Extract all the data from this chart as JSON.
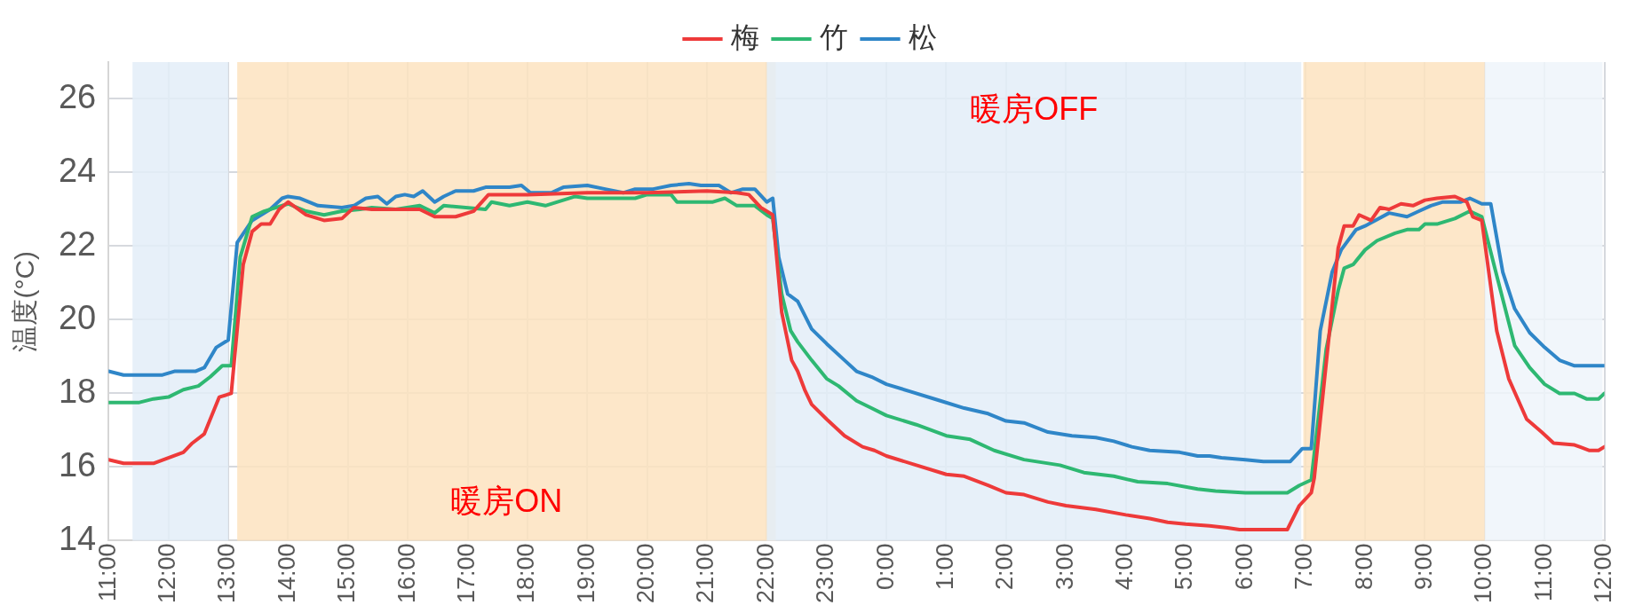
{
  "chart_data": {
    "type": "line",
    "ylabel": "温度(°C)",
    "xlim": [
      "2000-01-01T11:00",
      "2000-01-02T12:00"
    ],
    "ylim": [
      14,
      27
    ],
    "yticks": [
      14,
      16,
      18,
      20,
      22,
      24,
      26
    ],
    "xticks": [
      {
        "value": "2000-01-01T11:00",
        "label": "11:00"
      },
      {
        "value": "2000-01-01T12:00",
        "label": "12:00"
      },
      {
        "value": "2000-01-01T13:00",
        "label": "13:00"
      },
      {
        "value": "2000-01-01T14:00",
        "label": "14:00"
      },
      {
        "value": "2000-01-01T15:00",
        "label": "15:00"
      },
      {
        "value": "2000-01-01T16:00",
        "label": "16:00"
      },
      {
        "value": "2000-01-01T17:00",
        "label": "17:00"
      },
      {
        "value": "2000-01-01T18:00",
        "label": "18:00"
      },
      {
        "value": "2000-01-01T19:00",
        "label": "19:00"
      },
      {
        "value": "2000-01-01T20:00",
        "label": "20:00"
      },
      {
        "value": "2000-01-01T21:00",
        "label": "21:00"
      },
      {
        "value": "2000-01-01T22:00",
        "label": "22:00"
      },
      {
        "value": "2000-01-01T23:00",
        "label": "23:00"
      },
      {
        "value": "2000-01-02T00:00",
        "label": "0:00"
      },
      {
        "value": "2000-01-02T01:00",
        "label": "1:00"
      },
      {
        "value": "2000-01-02T02:00",
        "label": "2:00"
      },
      {
        "value": "2000-01-02T03:00",
        "label": "3:00"
      },
      {
        "value": "2000-01-02T04:00",
        "label": "4:00"
      },
      {
        "value": "2000-01-02T05:00",
        "label": "5:00"
      },
      {
        "value": "2000-01-02T06:00",
        "label": "6:00"
      },
      {
        "value": "2000-01-02T07:00",
        "label": "7:00"
      },
      {
        "value": "2000-01-02T08:00",
        "label": "8:00"
      },
      {
        "value": "2000-01-02T09:00",
        "label": "9:00"
      },
      {
        "value": "2000-01-02T10:00",
        "label": "10:00"
      },
      {
        "value": "2000-01-02T11:00",
        "label": "11:00"
      },
      {
        "value": "2000-01-02T12:00",
        "label": "12:00"
      }
    ],
    "grid": true,
    "legend": "top",
    "line_style": "solid",
    "marker": "none",
    "bands": [
      {
        "axis": "x",
        "from": "2000-01-01T11:24",
        "to": "2000-01-01T13:00",
        "color": "#e3edf8"
      },
      {
        "axis": "x",
        "from": "2000-01-01T13:09",
        "to": "2000-01-01T22:09",
        "color": "#fde3bf",
        "label": "暖房ON"
      },
      {
        "axis": "x",
        "from": "2000-01-01T22:00",
        "to": "2000-01-02T06:56",
        "color": "#e3edf8",
        "label": "暖房OFF"
      },
      {
        "axis": "x",
        "from": "2000-01-02T06:58",
        "to": "2000-01-02T10:00",
        "color": "#fde3bf"
      },
      {
        "axis": "x",
        "from": "2000-01-02T10:00",
        "to": "2000-01-02T11:58",
        "color": "#eef4fa"
      }
    ],
    "series": [
      {
        "name": "梅",
        "color": "#ee3a3a",
        "x": [
          "2000-01-01T11:00",
          "2000-01-01T11:15",
          "2000-01-01T11:45",
          "2000-01-01T12:15",
          "2000-01-01T12:24",
          "2000-01-01T12:36",
          "2000-01-01T12:51",
          "2000-01-01T13:03",
          "2000-01-01T13:15",
          "2000-01-01T13:24",
          "2000-01-01T13:33",
          "2000-01-01T13:42",
          "2000-01-01T13:51",
          "2000-01-01T14:00",
          "2000-01-01T14:18",
          "2000-01-01T14:36",
          "2000-01-01T14:54",
          "2000-01-01T15:06",
          "2000-01-01T15:24",
          "2000-01-01T15:48",
          "2000-01-01T16:12",
          "2000-01-01T16:27",
          "2000-01-01T16:48",
          "2000-01-01T17:06",
          "2000-01-01T17:21",
          "2000-01-01T18:00",
          "2000-01-01T19:00",
          "2000-01-01T20:00",
          "2000-01-01T21:00",
          "2000-01-01T21:30",
          "2000-01-01T21:42",
          "2000-01-01T21:54",
          "2000-01-01T22:06",
          "2000-01-01T22:15",
          "2000-01-01T22:25",
          "2000-01-01T22:31",
          "2000-01-01T22:38",
          "2000-01-01T22:45",
          "2000-01-01T23:00",
          "2000-01-01T23:18",
          "2000-01-01T23:36",
          "2000-01-01T23:48",
          "2000-01-02T00:00",
          "2000-01-02T00:30",
          "2000-01-02T01:00",
          "2000-01-02T01:18",
          "2000-01-02T01:42",
          "2000-01-02T02:00",
          "2000-01-02T02:18",
          "2000-01-02T02:42",
          "2000-01-02T03:00",
          "2000-01-02T03:30",
          "2000-01-02T04:00",
          "2000-01-02T04:24",
          "2000-01-02T04:42",
          "2000-01-02T05:00",
          "2000-01-02T05:24",
          "2000-01-02T05:42",
          "2000-01-02T05:54",
          "2000-01-02T06:42",
          "2000-01-02T06:54",
          "2000-01-02T07:06",
          "2000-01-02T07:09",
          "2000-01-02T07:33",
          "2000-01-02T07:39",
          "2000-01-02T07:48",
          "2000-01-02T07:54",
          "2000-01-02T08:06",
          "2000-01-02T08:15",
          "2000-01-02T08:24",
          "2000-01-02T08:36",
          "2000-01-02T08:48",
          "2000-01-02T09:00",
          "2000-01-02T09:12",
          "2000-01-02T09:30",
          "2000-01-02T09:42",
          "2000-01-02T09:48",
          "2000-01-02T09:57",
          "2000-01-02T10:12",
          "2000-01-02T10:24",
          "2000-01-02T10:42",
          "2000-01-02T10:57",
          "2000-01-02T11:09",
          "2000-01-02T11:30",
          "2000-01-02T11:45",
          "2000-01-02T11:54",
          "2000-01-02T12:00"
        ],
        "values": [
          16.2,
          16.1,
          16.1,
          16.4,
          16.65,
          16.9,
          17.9,
          18,
          21.5,
          22.4,
          22.6,
          22.6,
          23,
          23.2,
          22.85,
          22.7,
          22.75,
          23.05,
          23,
          23,
          23,
          22.8,
          22.8,
          22.95,
          23.4,
          23.4,
          23.45,
          23.45,
          23.5,
          23.45,
          23.4,
          23.05,
          22.85,
          20.2,
          18.9,
          18.6,
          18.1,
          17.7,
          17.3,
          16.85,
          16.55,
          16.45,
          16.3,
          16.05,
          15.8,
          15.75,
          15.5,
          15.3,
          15.25,
          15.05,
          14.95,
          14.85,
          14.7,
          14.6,
          14.5,
          14.45,
          14.4,
          14.35,
          14.3,
          14.3,
          14.95,
          15.3,
          15.7,
          21.95,
          22.55,
          22.55,
          22.85,
          22.7,
          23.05,
          23,
          23.15,
          23.1,
          23.25,
          23.3,
          23.35,
          23.2,
          22.8,
          22.7,
          19.7,
          18.4,
          17.3,
          16.95,
          16.65,
          16.6,
          16.45,
          16.45,
          16.55
        ]
      },
      {
        "name": "竹",
        "color": "#2eb872",
        "x": [
          "2000-01-01T11:00",
          "2000-01-01T11:30",
          "2000-01-01T11:45",
          "2000-01-01T12:00",
          "2000-01-01T12:15",
          "2000-01-01T12:30",
          "2000-01-01T12:42",
          "2000-01-01T12:54",
          "2000-01-01T13:03",
          "2000-01-01T13:12",
          "2000-01-01T13:24",
          "2000-01-01T13:36",
          "2000-01-01T14:00",
          "2000-01-01T14:18",
          "2000-01-01T14:36",
          "2000-01-01T14:54",
          "2000-01-01T15:12",
          "2000-01-01T15:24",
          "2000-01-01T15:48",
          "2000-01-01T16:12",
          "2000-01-01T16:27",
          "2000-01-01T16:36",
          "2000-01-01T17:18",
          "2000-01-01T17:24",
          "2000-01-01T17:42",
          "2000-01-01T18:00",
          "2000-01-01T18:18",
          "2000-01-01T18:48",
          "2000-01-01T19:00",
          "2000-01-01T19:48",
          "2000-01-01T20:00",
          "2000-01-01T20:24",
          "2000-01-01T20:30",
          "2000-01-01T21:06",
          "2000-01-01T21:18",
          "2000-01-01T21:30",
          "2000-01-01T21:48",
          "2000-01-01T22:00",
          "2000-01-01T22:06",
          "2000-01-01T22:15",
          "2000-01-01T22:24",
          "2000-01-01T22:31",
          "2000-01-01T22:45",
          "2000-01-01T23:00",
          "2000-01-01T23:12",
          "2000-01-01T23:30",
          "2000-01-01T23:45",
          "2000-01-02T00:00",
          "2000-01-02T00:30",
          "2000-01-02T01:00",
          "2000-01-02T01:24",
          "2000-01-02T01:48",
          "2000-01-02T02:18",
          "2000-01-02T02:54",
          "2000-01-02T03:18",
          "2000-01-02T03:48",
          "2000-01-02T04:12",
          "2000-01-02T04:42",
          "2000-01-02T05:12",
          "2000-01-02T05:30",
          "2000-01-02T06:00",
          "2000-01-02T06:42",
          "2000-01-02T06:54",
          "2000-01-02T07:06",
          "2000-01-02T07:21",
          "2000-01-02T07:33",
          "2000-01-02T07:39",
          "2000-01-02T07:48",
          "2000-01-02T08:00",
          "2000-01-02T08:12",
          "2000-01-02T08:30",
          "2000-01-02T08:42",
          "2000-01-02T08:54",
          "2000-01-02T09:00",
          "2000-01-02T09:12",
          "2000-01-02T09:30",
          "2000-01-02T09:45",
          "2000-01-02T09:57",
          "2000-01-02T10:12",
          "2000-01-02T10:30",
          "2000-01-02T10:45",
          "2000-01-02T11:00",
          "2000-01-02T11:15",
          "2000-01-02T11:30",
          "2000-01-02T11:42",
          "2000-01-02T11:54",
          "2000-01-02T12:00"
        ],
        "values": [
          17.75,
          17.75,
          17.85,
          17.9,
          18.1,
          18.2,
          18.45,
          18.75,
          18.75,
          21.7,
          22.8,
          22.95,
          23.15,
          22.95,
          22.85,
          22.95,
          23,
          23.05,
          23,
          23.1,
          22.9,
          23.1,
          23,
          23.2,
          23.1,
          23.2,
          23.1,
          23.35,
          23.3,
          23.3,
          23.4,
          23.4,
          23.2,
          23.2,
          23.3,
          23.1,
          23.1,
          22.85,
          22.75,
          20.7,
          19.7,
          19.4,
          18.9,
          18.4,
          18.2,
          17.8,
          17.6,
          17.4,
          17.15,
          16.85,
          16.75,
          16.45,
          16.2,
          16.05,
          15.85,
          15.75,
          15.6,
          15.55,
          15.4,
          15.35,
          15.3,
          15.3,
          15.5,
          15.65,
          19.2,
          20.8,
          21.4,
          21.5,
          21.9,
          22.15,
          22.35,
          22.45,
          22.45,
          22.6,
          22.6,
          22.75,
          22.95,
          22.8,
          21.2,
          19.3,
          18.7,
          18.25,
          18,
          18,
          17.85,
          17.85,
          18
        ]
      },
      {
        "name": "松",
        "color": "#2f86c8",
        "x": [
          "2000-01-01T11:00",
          "2000-01-01T11:15",
          "2000-01-01T11:54",
          "2000-01-01T12:06",
          "2000-01-01T12:27",
          "2000-01-01T12:36",
          "2000-01-01T12:48",
          "2000-01-01T13:00",
          "2000-01-01T13:09",
          "2000-01-01T13:24",
          "2000-01-01T13:42",
          "2000-01-01T13:54",
          "2000-01-01T14:00",
          "2000-01-01T14:12",
          "2000-01-01T14:30",
          "2000-01-01T14:54",
          "2000-01-01T15:06",
          "2000-01-01T15:18",
          "2000-01-01T15:30",
          "2000-01-01T15:39",
          "2000-01-01T15:48",
          "2000-01-01T15:57",
          "2000-01-01T16:06",
          "2000-01-01T16:15",
          "2000-01-01T16:27",
          "2000-01-01T16:36",
          "2000-01-01T16:48",
          "2000-01-01T17:06",
          "2000-01-01T17:18",
          "2000-01-01T17:42",
          "2000-01-01T17:54",
          "2000-01-01T18:03",
          "2000-01-01T18:24",
          "2000-01-01T18:36",
          "2000-01-01T19:00",
          "2000-01-01T19:18",
          "2000-01-01T19:36",
          "2000-01-01T19:48",
          "2000-01-01T20:06",
          "2000-01-01T20:24",
          "2000-01-01T20:42",
          "2000-01-01T20:54",
          "2000-01-01T21:12",
          "2000-01-01T21:24",
          "2000-01-01T21:36",
          "2000-01-01T21:48",
          "2000-01-01T22:00",
          "2000-01-01T22:06",
          "2000-01-01T22:12",
          "2000-01-01T22:21",
          "2000-01-01T22:31",
          "2000-01-01T22:45",
          "2000-01-01T23:00",
          "2000-01-01T23:18",
          "2000-01-01T23:30",
          "2000-01-01T23:45",
          "2000-01-02T00:00",
          "2000-01-02T00:24",
          "2000-01-02T00:54",
          "2000-01-02T01:18",
          "2000-01-02T01:42",
          "2000-01-02T02:00",
          "2000-01-02T02:18",
          "2000-01-02T02:42",
          "2000-01-02T03:06",
          "2000-01-02T03:30",
          "2000-01-02T03:48",
          "2000-01-02T04:06",
          "2000-01-02T04:24",
          "2000-01-02T04:54",
          "2000-01-02T05:12",
          "2000-01-02T05:24",
          "2000-01-02T05:36",
          "2000-01-02T06:00",
          "2000-01-02T06:18",
          "2000-01-02T06:45",
          "2000-01-02T06:57",
          "2000-01-02T07:06",
          "2000-01-02T07:15",
          "2000-01-02T07:27",
          "2000-01-02T07:36",
          "2000-01-02T07:51",
          "2000-01-02T08:00",
          "2000-01-02T08:24",
          "2000-01-02T08:42",
          "2000-01-02T08:54",
          "2000-01-02T09:06",
          "2000-01-02T09:18",
          "2000-01-02T09:36",
          "2000-01-02T09:45",
          "2000-01-02T09:57",
          "2000-01-02T10:06",
          "2000-01-02T10:18",
          "2000-01-02T10:30",
          "2000-01-02T10:45",
          "2000-01-02T11:00",
          "2000-01-02T11:15",
          "2000-01-02T11:30",
          "2000-01-02T12:00"
        ],
        "values": [
          18.6,
          18.5,
          18.5,
          18.6,
          18.6,
          18.7,
          19.25,
          19.45,
          22.1,
          22.7,
          23,
          23.3,
          23.35,
          23.3,
          23.1,
          23.05,
          23.1,
          23.3,
          23.35,
          23.15,
          23.35,
          23.4,
          23.35,
          23.5,
          23.2,
          23.35,
          23.5,
          23.5,
          23.6,
          23.6,
          23.65,
          23.45,
          23.45,
          23.6,
          23.65,
          23.55,
          23.45,
          23.55,
          23.55,
          23.65,
          23.7,
          23.65,
          23.65,
          23.45,
          23.55,
          23.55,
          23.2,
          23.3,
          21.7,
          20.7,
          20.5,
          19.75,
          19.35,
          18.9,
          18.6,
          18.45,
          18.25,
          18.05,
          17.8,
          17.6,
          17.45,
          17.25,
          17.2,
          16.95,
          16.85,
          16.8,
          16.7,
          16.55,
          16.45,
          16.4,
          16.3,
          16.3,
          16.25,
          16.2,
          16.15,
          16.15,
          16.5,
          16.5,
          19.7,
          21.3,
          21.9,
          22.45,
          22.55,
          22.9,
          22.8,
          22.95,
          23.1,
          23.2,
          23.2,
          23.3,
          23.15,
          23.15,
          21.3,
          20.3,
          19.65,
          19.25,
          18.9,
          18.75,
          18.75
        ]
      }
    ]
  }
}
